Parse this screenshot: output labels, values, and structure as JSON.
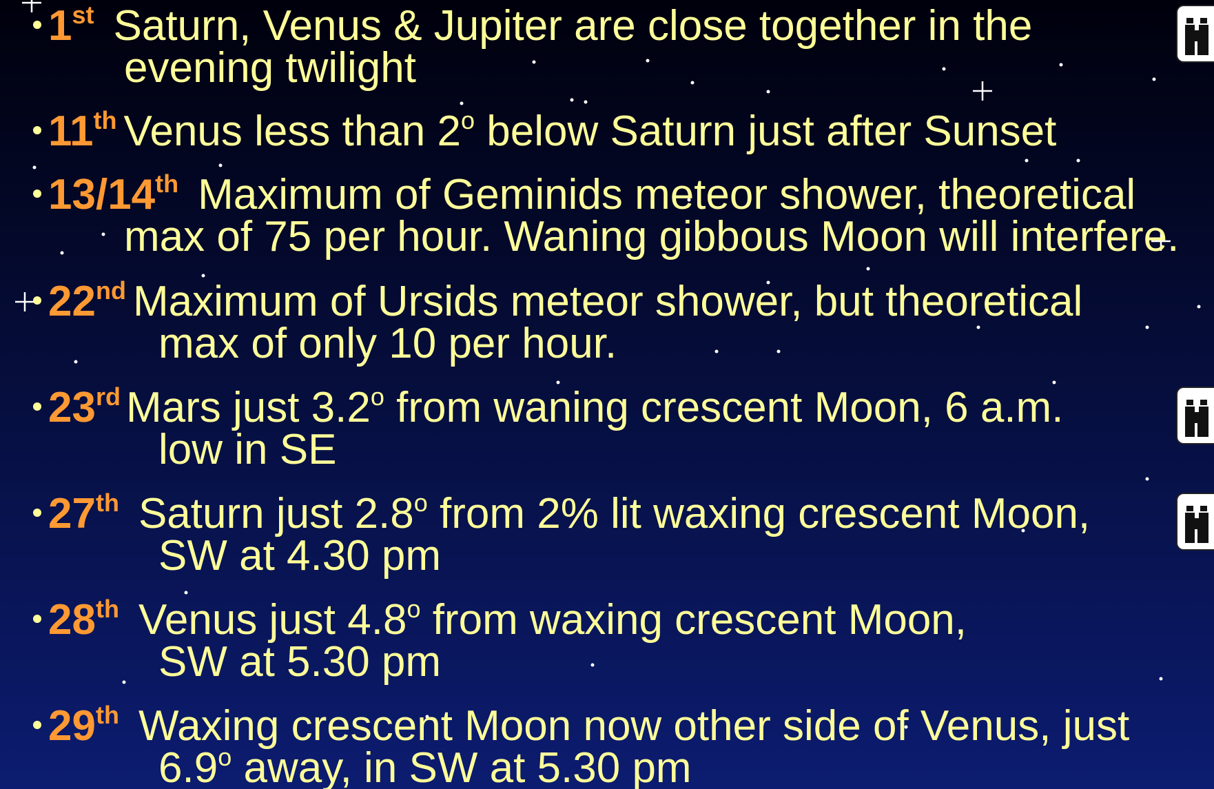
{
  "items": [
    {
      "day": "1",
      "suffix": "st",
      "binoculars": true,
      "lines": [
        [
          {
            "text": "Saturn, Venus & Jupiter are close together in the"
          }
        ],
        [
          {
            "text": "evening twilight"
          }
        ]
      ]
    },
    {
      "day": "11",
      "suffix": "th",
      "lines": [
        [
          {
            "text": "Venus less than 2"
          },
          {
            "text": "o",
            "sup": true
          },
          {
            "text": " below Saturn just after Sunset"
          }
        ]
      ]
    },
    {
      "day": "13/14",
      "suffix": "th",
      "lines": [
        [
          {
            "text": "Maximum of Geminids meteor shower, theoretical"
          }
        ],
        [
          {
            "text": "max of 75 per hour. Waning gibbous Moon will interfere."
          }
        ]
      ]
    },
    {
      "day": "22",
      "suffix": "nd",
      "lines": [
        [
          {
            "text": "Maximum of Ursids meteor shower, but theoretical"
          }
        ],
        [
          {
            "text": "max of only 10 per hour."
          }
        ]
      ]
    },
    {
      "day": "23",
      "suffix": "rd",
      "binoculars": true,
      "lines": [
        [
          {
            "text": "Mars just 3.2"
          },
          {
            "text": "o",
            "sup": true
          },
          {
            "text": " from waning crescent Moon, 6 a.m."
          }
        ],
        [
          {
            "text": "low in SE"
          }
        ]
      ]
    },
    {
      "day": "27",
      "suffix": "th",
      "binoculars": true,
      "lines": [
        [
          {
            "text": "Saturn just 2.8"
          },
          {
            "text": "o",
            "sup": true
          },
          {
            "text": " from 2% lit waxing crescent Moon,"
          }
        ],
        [
          {
            "text": "SW at 4.30 pm"
          }
        ]
      ]
    },
    {
      "day": "28",
      "suffix": "th",
      "lines": [
        [
          {
            "text": "Venus just 4.8"
          },
          {
            "text": "o",
            "sup": true
          },
          {
            "text": " from waxing crescent Moon,"
          }
        ],
        [
          {
            "text": "SW at 5.30 pm"
          }
        ]
      ]
    },
    {
      "day": "29",
      "suffix": "th",
      "lines": [
        [
          {
            "text": "Waxing crescent Moon now other side of Venus, just"
          }
        ],
        [
          {
            "text": "6.9"
          },
          {
            "text": "o",
            "sup": true
          },
          {
            "text": " away, in SW at 5.30 pm"
          }
        ]
      ]
    }
  ]
}
